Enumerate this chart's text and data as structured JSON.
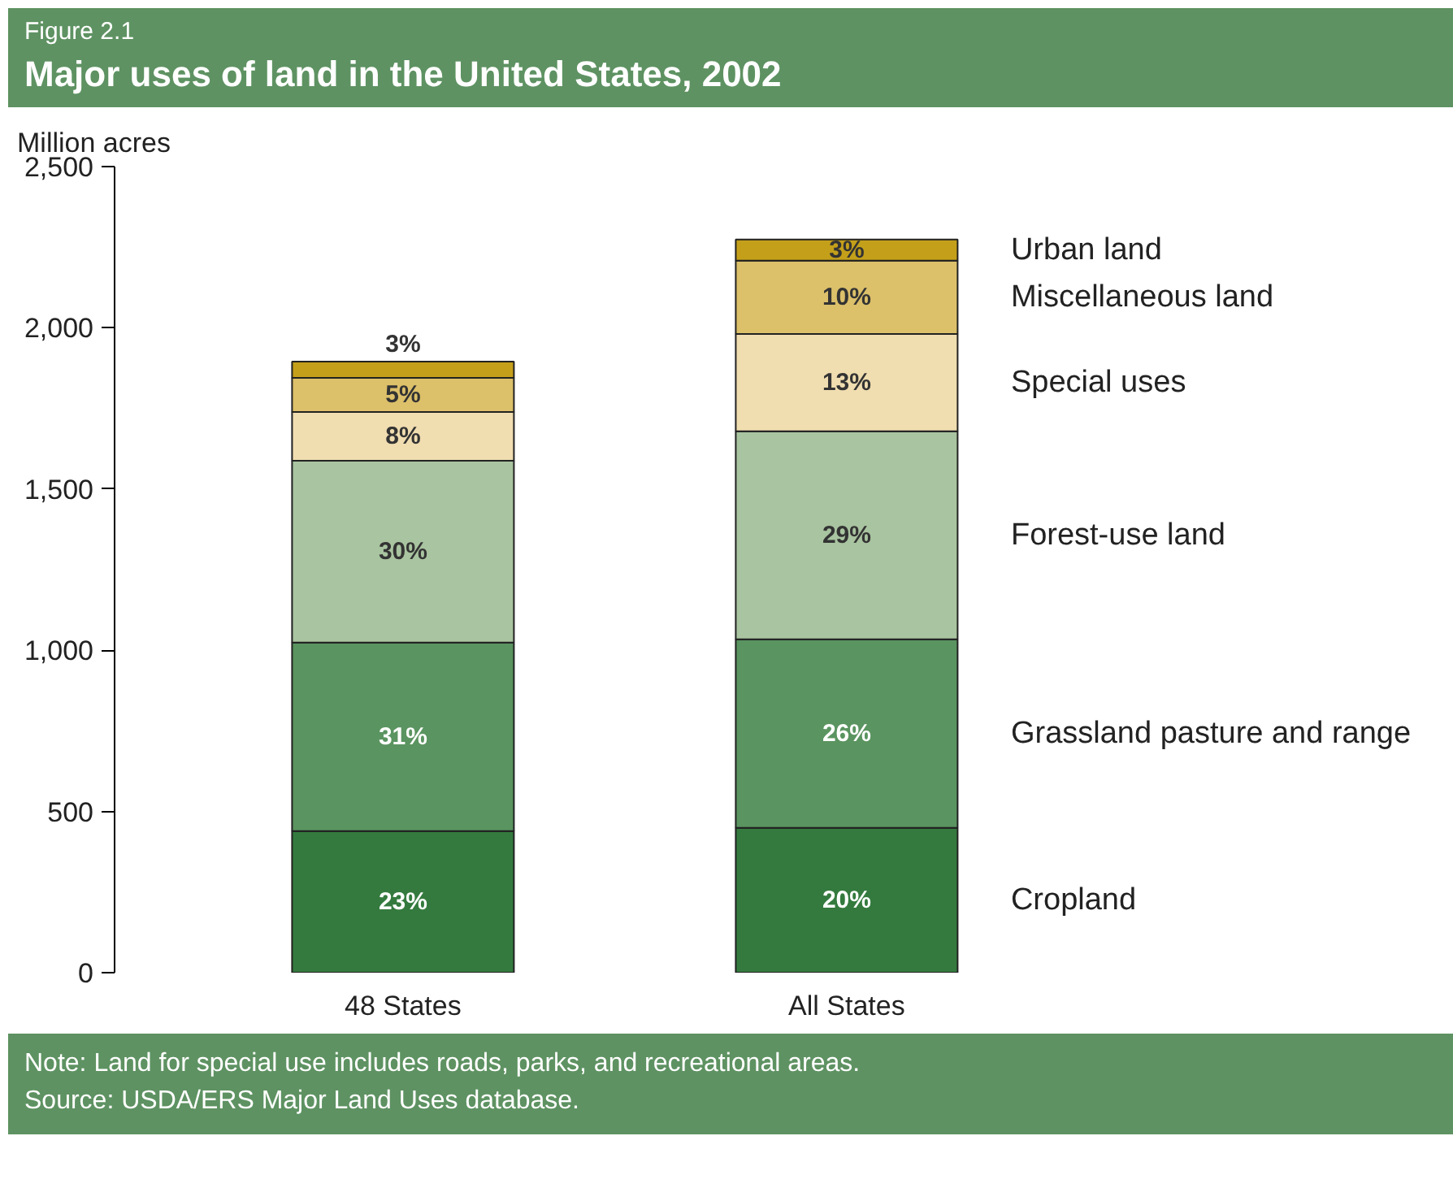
{
  "chart_data": {
    "type": "bar",
    "stacked": true,
    "subtitle": "Figure 2.1",
    "title": "Major uses of land in the United States, 2002",
    "ylabel": "Million acres",
    "categories": [
      "48 States",
      "All States"
    ],
    "series": [
      {
        "name": "Cropland",
        "color": "#347a3e",
        "values": [
          439,
          449
        ]
      },
      {
        "name": "Grassland pasture and range",
        "color": "#5a9460",
        "values": [
          585,
          585
        ]
      },
      {
        "name": "Forest-use land",
        "color": "#a9c4a0",
        "values": [
          564,
          645
        ]
      },
      {
        "name": "Special uses",
        "color": "#f0ddb0",
        "values": [
          151,
          302
        ]
      },
      {
        "name": "Miscellaneous land",
        "color": "#dcc06a",
        "values": [
          106,
          227
        ]
      },
      {
        "name": "Urban land",
        "color": "#c4a01a",
        "values": [
          50,
          66
        ]
      }
    ],
    "ylim": [
      0,
      2500
    ],
    "yticks": [
      0,
      {
        "value": 500,
        "label": "500"
      },
      {
        "value": 1000,
        "label": "1,000"
      },
      {
        "value": 1500,
        "label": "1,500"
      },
      {
        "value": 2000,
        "label": "2,000"
      },
      {
        "value": 2500,
        "label": "2,500"
      }
    ],
    "grid": false,
    "legend": "right",
    "annotations": [
      "23%",
      "31%",
      "30%",
      "8%",
      "5%",
      "3%",
      "20%",
      "26%",
      "29%",
      "13%",
      "10%",
      "3%",
      "Note: Land for special use includes roads, parks, and recreational areas.",
      "Source: USDA/ERS Major Land Uses database."
    ]
  }
}
